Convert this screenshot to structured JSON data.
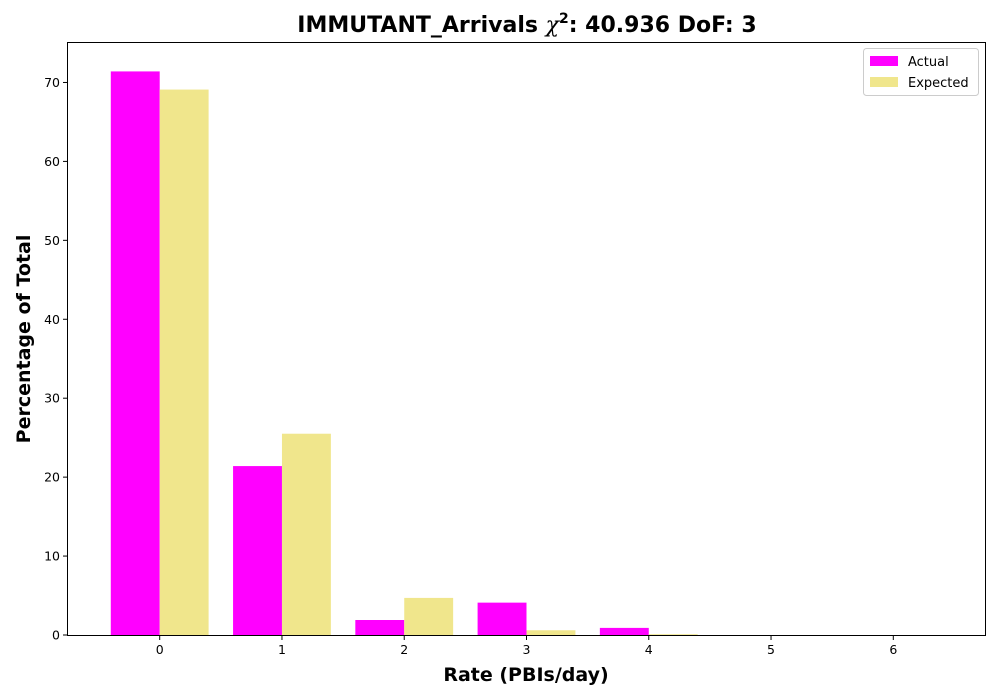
{
  "chart_data": {
    "type": "bar",
    "title": {
      "prefix": "IMMUTANT_Arrivals ",
      "chi_symbol": "χ",
      "chi_exponent": "2",
      "suffix": ": 40.936 DoF: 3"
    },
    "xlabel": "Rate (PBIs/day)",
    "ylabel": "Percentage of Total",
    "categories": [
      "0",
      "1",
      "2",
      "3",
      "4",
      "5",
      "6"
    ],
    "x": [
      0,
      1,
      2,
      3,
      4,
      5,
      6
    ],
    "series": [
      {
        "name": "Actual",
        "color": "#ff00ff",
        "values": [
          71.4,
          21.4,
          1.9,
          4.1,
          0.9,
          0.0,
          0.0
        ]
      },
      {
        "name": "Expected",
        "color": "#f0e68c",
        "values": [
          69.1,
          25.5,
          4.7,
          0.6,
          0.1,
          0.0,
          0.0
        ]
      }
    ],
    "xlim": [
      -0.75,
      6.75
    ],
    "ylim": [
      0,
      75
    ],
    "yticks": [
      0,
      10,
      20,
      30,
      40,
      50,
      60,
      70
    ],
    "bar_width": 0.4,
    "grid": false,
    "legend_position": "top-right"
  }
}
